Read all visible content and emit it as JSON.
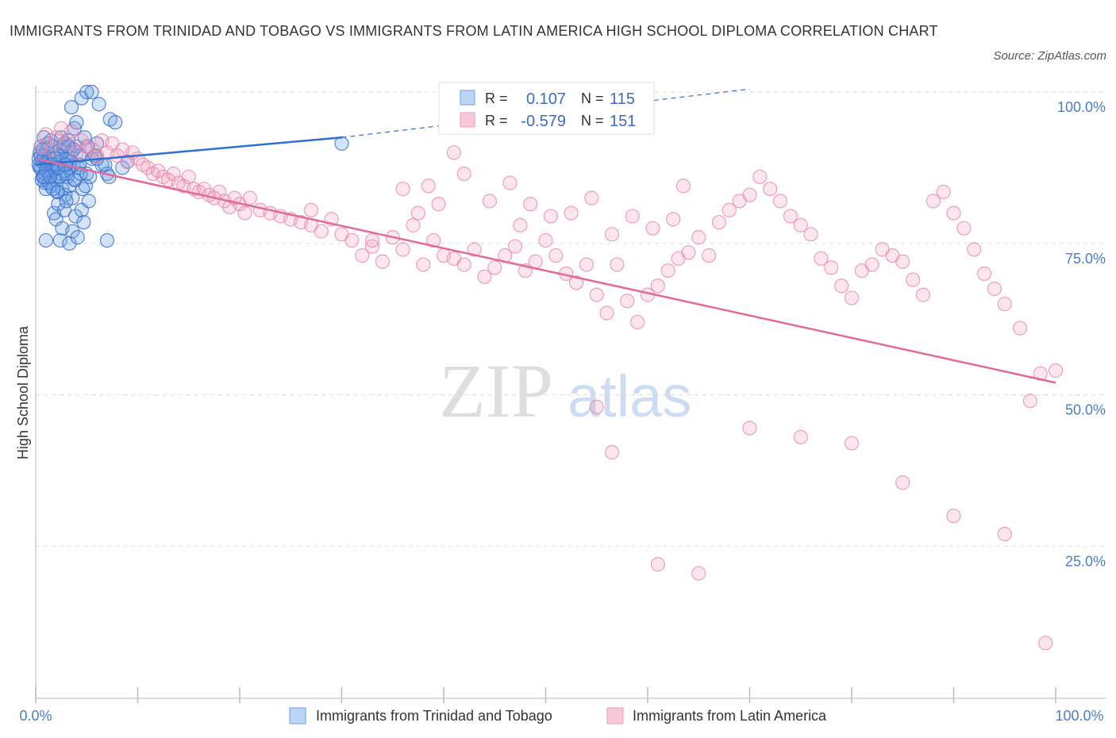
{
  "title": "IMMIGRANTS FROM TRINIDAD AND TOBAGO VS IMMIGRANTS FROM LATIN AMERICA HIGH SCHOOL DIPLOMA CORRELATION CHART",
  "source": "Source: ZipAtlas.com",
  "colors": {
    "blue": "#6d9ee6",
    "blue_line": "#2f6fd0",
    "pink": "#f29bb8",
    "pink_line": "#e3699a",
    "tick": "#4a7cc9"
  },
  "chart_data": {
    "type": "scatter",
    "title": "IMMIGRANTS FROM TRINIDAD AND TOBAGO VS IMMIGRANTS FROM LATIN AMERICA HIGH SCHOOL DIPLOMA CORRELATION CHART",
    "ylabel": "High School Diploma",
    "xlim": [
      0,
      100
    ],
    "ylim": [
      0,
      100
    ],
    "x_tick_labels": [
      "0.0%",
      "100.0%"
    ],
    "y_ticks": [
      25,
      50,
      75,
      100
    ],
    "y_tick_labels": [
      "25.0%",
      "50.0%",
      "75.0%",
      "100.0%"
    ],
    "grid": true,
    "legend_top": {
      "r_label": "R =",
      "n_label": "N =",
      "rows": [
        {
          "r": "0.107",
          "n": "115"
        },
        {
          "r": "-0.579",
          "n": "151"
        }
      ]
    },
    "series": [
      {
        "name": "Immigrants from Trinidad and Tobago",
        "trend": {
          "x": [
            0,
            30
          ],
          "y": [
            88.0,
            92.5
          ],
          "dashed_to": [
            70,
            100.5
          ]
        },
        "points": [
          [
            0.3,
            89.0
          ],
          [
            0.4,
            90.0
          ],
          [
            0.5,
            87.5
          ],
          [
            0.6,
            88.5
          ],
          [
            0.7,
            86.0
          ],
          [
            0.8,
            89.5
          ],
          [
            0.9,
            85.0
          ],
          [
            1.0,
            88.0
          ],
          [
            1.1,
            90.5
          ],
          [
            1.2,
            87.0
          ],
          [
            1.3,
            86.5
          ],
          [
            1.4,
            89.0
          ],
          [
            1.5,
            84.5
          ],
          [
            1.6,
            88.0
          ],
          [
            1.7,
            91.0
          ],
          [
            1.8,
            86.0
          ],
          [
            1.9,
            87.5
          ],
          [
            2.0,
            85.5
          ],
          [
            2.1,
            89.5
          ],
          [
            2.2,
            83.5
          ],
          [
            2.3,
            88.5
          ],
          [
            2.4,
            90.5
          ],
          [
            2.5,
            86.5
          ],
          [
            2.6,
            84.0
          ],
          [
            2.7,
            87.0
          ],
          [
            2.8,
            91.5
          ],
          [
            2.9,
            83.0
          ],
          [
            3.0,
            89.0
          ],
          [
            3.1,
            86.0
          ],
          [
            3.2,
            92.0
          ],
          [
            3.3,
            84.5
          ],
          [
            3.4,
            87.5
          ],
          [
            3.5,
            90.0
          ],
          [
            3.6,
            82.5
          ],
          [
            3.7,
            88.0
          ],
          [
            3.8,
            94.0
          ],
          [
            3.9,
            85.5
          ],
          [
            4.0,
            91.0
          ],
          [
            4.2,
            87.5
          ],
          [
            4.4,
            89.5
          ],
          [
            4.6,
            84.0
          ],
          [
            4.8,
            92.5
          ],
          [
            5.0,
            86.5
          ],
          [
            0.5,
            91.0
          ],
          [
            0.8,
            92.5
          ],
          [
            1.0,
            84.0
          ],
          [
            1.2,
            91.5
          ],
          [
            1.5,
            92.0
          ],
          [
            1.8,
            80.0
          ],
          [
            2.0,
            79.0
          ],
          [
            2.2,
            81.5
          ],
          [
            2.4,
            75.5
          ],
          [
            2.6,
            77.5
          ],
          [
            2.8,
            80.5
          ],
          [
            3.0,
            82.0
          ],
          [
            3.3,
            75.0
          ],
          [
            3.6,
            77.0
          ],
          [
            3.9,
            79.5
          ],
          [
            4.1,
            76.0
          ],
          [
            4.5,
            80.5
          ],
          [
            4.7,
            78.5
          ],
          [
            5.2,
            82.0
          ],
          [
            5.5,
            89.0
          ],
          [
            6.0,
            91.5
          ],
          [
            6.5,
            88.0
          ],
          [
            7.0,
            86.5
          ],
          [
            7.3,
            95.5
          ],
          [
            7.8,
            95.0
          ],
          [
            3.5,
            97.5
          ],
          [
            4.0,
            95.0
          ],
          [
            4.5,
            99.0
          ],
          [
            5.0,
            100.0
          ],
          [
            5.5,
            100.0
          ],
          [
            6.2,
            98.0
          ],
          [
            1.0,
            75.5
          ],
          [
            2.0,
            88.0
          ],
          [
            2.5,
            89.5
          ],
          [
            3.0,
            86.5
          ],
          [
            0.4,
            87.5
          ],
          [
            0.6,
            85.5
          ],
          [
            0.9,
            86.5
          ],
          [
            1.1,
            88.5
          ],
          [
            1.3,
            85.0
          ],
          [
            1.6,
            87.0
          ],
          [
            1.9,
            89.0
          ],
          [
            2.1,
            83.5
          ],
          [
            2.3,
            86.0
          ],
          [
            2.7,
            91.0
          ],
          [
            3.4,
            88.5
          ],
          [
            3.8,
            85.5
          ],
          [
            4.3,
            88.0
          ],
          [
            4.9,
            84.5
          ],
          [
            5.3,
            86.0
          ],
          [
            5.8,
            89.5
          ],
          [
            6.8,
            88.0
          ],
          [
            7.2,
            86.0
          ],
          [
            8.5,
            87.5
          ],
          [
            9.0,
            88.5
          ],
          [
            7.0,
            75.5
          ],
          [
            30.0,
            91.5
          ],
          [
            0.3,
            88.0
          ],
          [
            0.5,
            89.5
          ],
          [
            0.7,
            90.5
          ],
          [
            1.0,
            87.0
          ],
          [
            1.4,
            86.0
          ],
          [
            1.7,
            84.0
          ],
          [
            2.2,
            87.5
          ],
          [
            2.9,
            88.0
          ],
          [
            3.7,
            90.5
          ],
          [
            4.4,
            86.5
          ],
          [
            5.1,
            91.0
          ],
          [
            6.0,
            89.0
          ],
          [
            2.5,
            92.5
          ],
          [
            3.2,
            91.0
          ],
          [
            0.8,
            86.0
          ]
        ]
      },
      {
        "name": "Immigrants from Latin America",
        "trend": {
          "x": [
            0,
            100
          ],
          "y": [
            89.0,
            52.0
          ]
        },
        "points": [
          [
            0.5,
            91.0
          ],
          [
            1.0,
            93.0
          ],
          [
            1.5,
            90.5
          ],
          [
            2.0,
            92.5
          ],
          [
            2.5,
            94.0
          ],
          [
            3.0,
            91.5
          ],
          [
            3.5,
            93.5
          ],
          [
            4.0,
            90.0
          ],
          [
            4.5,
            92.0
          ],
          [
            5.0,
            91.0
          ],
          [
            5.5,
            90.5
          ],
          [
            6.0,
            89.5
          ],
          [
            6.5,
            92.0
          ],
          [
            7.0,
            90.0
          ],
          [
            7.5,
            91.5
          ],
          [
            8.0,
            89.5
          ],
          [
            8.5,
            90.5
          ],
          [
            9.0,
            88.5
          ],
          [
            9.5,
            90.0
          ],
          [
            10.0,
            89.0
          ],
          [
            10.5,
            88.0
          ],
          [
            11.0,
            87.5
          ],
          [
            11.5,
            86.5
          ],
          [
            12.0,
            87.0
          ],
          [
            12.5,
            86.0
          ],
          [
            13.0,
            85.5
          ],
          [
            13.5,
            86.5
          ],
          [
            14.0,
            85.0
          ],
          [
            14.5,
            84.5
          ],
          [
            15.0,
            86.0
          ],
          [
            15.5,
            84.0
          ],
          [
            16.0,
            83.5
          ],
          [
            16.5,
            84.0
          ],
          [
            17.0,
            83.0
          ],
          [
            17.5,
            82.5
          ],
          [
            18.0,
            83.5
          ],
          [
            18.5,
            82.0
          ],
          [
            19.0,
            81.0
          ],
          [
            19.5,
            82.5
          ],
          [
            20.0,
            81.5
          ],
          [
            20.5,
            80.0
          ],
          [
            21.0,
            82.5
          ],
          [
            22.0,
            80.5
          ],
          [
            23.0,
            80.0
          ],
          [
            24.0,
            79.5
          ],
          [
            25.0,
            79.0
          ],
          [
            26.0,
            78.5
          ],
          [
            27.0,
            80.5
          ],
          [
            28.0,
            77.0
          ],
          [
            29.0,
            79.0
          ],
          [
            30.0,
            76.5
          ],
          [
            31.0,
            75.5
          ],
          [
            32.0,
            73.0
          ],
          [
            33.0,
            74.5
          ],
          [
            34.0,
            72.0
          ],
          [
            35.0,
            76.0
          ],
          [
            36.0,
            74.0
          ],
          [
            37.0,
            78.0
          ],
          [
            38.0,
            71.5
          ],
          [
            39.0,
            75.5
          ],
          [
            40.0,
            73.0
          ],
          [
            41.0,
            72.5
          ],
          [
            42.0,
            71.5
          ],
          [
            43.0,
            74.0
          ],
          [
            44.0,
            69.5
          ],
          [
            45.0,
            71.0
          ],
          [
            46.0,
            73.0
          ],
          [
            47.0,
            74.5
          ],
          [
            48.0,
            70.5
          ],
          [
            49.0,
            72.0
          ],
          [
            50.0,
            75.5
          ],
          [
            51.0,
            73.0
          ],
          [
            52.0,
            70.0
          ],
          [
            53.0,
            68.5
          ],
          [
            54.0,
            71.5
          ],
          [
            55.0,
            66.5
          ],
          [
            56.0,
            63.5
          ],
          [
            57.0,
            71.5
          ],
          [
            58.0,
            65.5
          ],
          [
            59.0,
            62.0
          ],
          [
            60.0,
            66.5
          ],
          [
            61.0,
            68.0
          ],
          [
            62.0,
            70.5
          ],
          [
            63.0,
            72.5
          ],
          [
            64.0,
            73.5
          ],
          [
            65.0,
            76.0
          ],
          [
            66.0,
            73.0
          ],
          [
            67.0,
            78.5
          ],
          [
            68.0,
            80.5
          ],
          [
            69.0,
            82.0
          ],
          [
            70.0,
            83.0
          ],
          [
            71.0,
            86.0
          ],
          [
            72.0,
            84.0
          ],
          [
            73.0,
            82.0
          ],
          [
            74.0,
            79.5
          ],
          [
            75.0,
            78.0
          ],
          [
            76.0,
            76.5
          ],
          [
            77.0,
            72.5
          ],
          [
            78.0,
            71.0
          ],
          [
            79.0,
            68.0
          ],
          [
            80.0,
            66.0
          ],
          [
            81.0,
            70.5
          ],
          [
            82.0,
            71.5
          ],
          [
            83.0,
            74.0
          ],
          [
            84.0,
            73.0
          ],
          [
            85.0,
            72.0
          ],
          [
            86.0,
            69.0
          ],
          [
            87.0,
            66.5
          ],
          [
            88.0,
            82.0
          ],
          [
            89.0,
            83.5
          ],
          [
            90.0,
            80.0
          ],
          [
            91.0,
            77.5
          ],
          [
            92.0,
            74.0
          ],
          [
            93.0,
            70.0
          ],
          [
            94.0,
            67.5
          ],
          [
            95.0,
            65.0
          ],
          [
            27.0,
            78.0
          ],
          [
            33.0,
            75.5
          ],
          [
            36.0,
            84.0
          ],
          [
            37.5,
            80.0
          ],
          [
            38.5,
            84.5
          ],
          [
            39.5,
            81.5
          ],
          [
            41.0,
            90.0
          ],
          [
            42.0,
            86.5
          ],
          [
            44.5,
            82.0
          ],
          [
            46.5,
            85.0
          ],
          [
            47.5,
            78.0
          ],
          [
            48.5,
            81.5
          ],
          [
            50.5,
            79.5
          ],
          [
            52.5,
            80.0
          ],
          [
            54.5,
            82.5
          ],
          [
            56.5,
            76.5
          ],
          [
            58.5,
            79.5
          ],
          [
            60.5,
            77.5
          ],
          [
            62.5,
            79.0
          ],
          [
            63.5,
            84.5
          ],
          [
            55.0,
            48.0
          ],
          [
            56.5,
            40.5
          ],
          [
            61.0,
            22.0
          ],
          [
            65.0,
            20.5
          ],
          [
            70.0,
            44.5
          ],
          [
            75.0,
            43.0
          ],
          [
            80.0,
            42.0
          ],
          [
            85.0,
            35.5
          ],
          [
            90.0,
            30.0
          ],
          [
            95.0,
            27.0
          ],
          [
            96.5,
            61.0
          ],
          [
            97.5,
            49.0
          ],
          [
            98.5,
            53.5
          ],
          [
            99.0,
            9.0
          ],
          [
            100.0,
            54.0
          ]
        ]
      }
    ]
  },
  "bottom_legend": {
    "blue_label": "Immigrants from Trinidad and Tobago",
    "pink_label": "Immigrants from Latin America"
  }
}
